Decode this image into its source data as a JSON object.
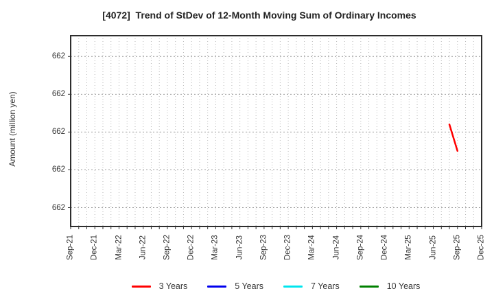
{
  "chart_data": {
    "type": "line",
    "title": "[4072]  Trend of StDev of 12-Month Moving Sum of Ordinary Incomes",
    "ylabel": "Amount (million yen)",
    "x_axis": {
      "start_month": "Sep-21",
      "end_month": "Dec-25",
      "tick_labels": [
        "Sep-21",
        "Dec-21",
        "Mar-22",
        "Jun-22",
        "Sep-22",
        "Dec-22",
        "Mar-23",
        "Jun-23",
        "Sep-23",
        "Dec-23",
        "Mar-24",
        "Jun-24",
        "Sep-24",
        "Dec-24",
        "Mar-25",
        "Jun-25",
        "Sep-25",
        "Dec-25"
      ],
      "minor_gridlines": "monthly"
    },
    "y_axis": {
      "tick_display": [
        "662",
        "662",
        "662",
        "662",
        "662"
      ],
      "tick_values_est": [
        662.2,
        662.1,
        662.0,
        661.9,
        661.8
      ],
      "ylim": [
        661.75,
        662.255
      ]
    },
    "grid": true,
    "legend_position": "bottom",
    "series": [
      {
        "name": "3 Years",
        "color": "#ff0000",
        "points": [
          {
            "month": "Aug-25",
            "value": 662.02
          },
          {
            "month": "Sep-25",
            "value": 661.95
          }
        ]
      },
      {
        "name": "5 Years",
        "color": "#0000ee",
        "points": []
      },
      {
        "name": "7 Years",
        "color": "#00e5ee",
        "points": []
      },
      {
        "name": "10 Years",
        "color": "#008000",
        "points": []
      }
    ],
    "colors": {
      "plot_border": "#2d2d2d",
      "grid_vertical": "#b8b8b8",
      "grid_horizontal": "#999999",
      "tick_mark": "#333333"
    }
  }
}
